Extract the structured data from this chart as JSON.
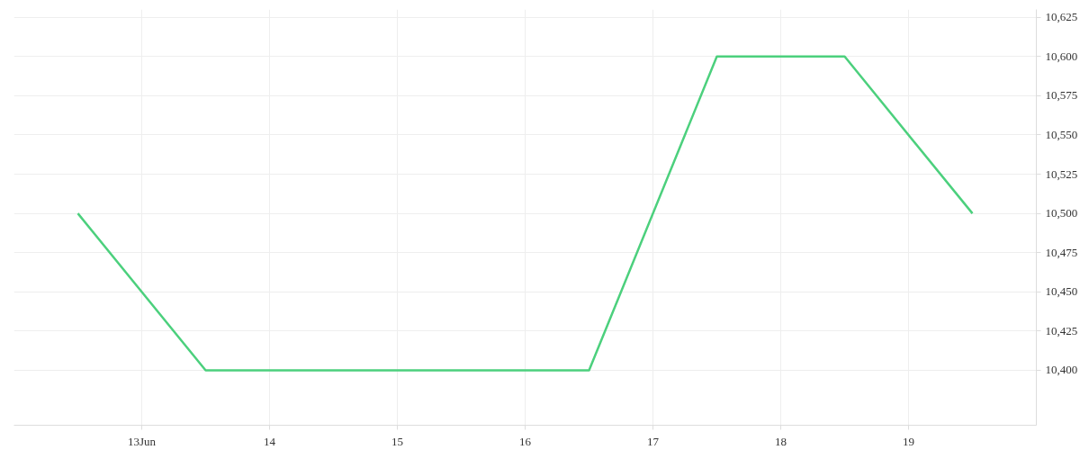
{
  "chart_data": {
    "type": "line",
    "x": [
      12.5,
      13.5,
      14.5,
      15.5,
      16.5,
      17.5,
      18.5,
      19.5
    ],
    "series": [
      {
        "color": "#4cd07d",
        "values": [
          10500,
          10400,
          10400,
          10400,
          10400,
          10600,
          10600,
          10500
        ]
      }
    ],
    "xlim": [
      12,
      20
    ],
    "xticks": [
      {
        "value": 13,
        "label": "13Jun"
      },
      14,
      15,
      16,
      17,
      18,
      19
    ],
    "ylim": [
      10365,
      10630
    ],
    "yticks": [
      {
        "value": 10400,
        "label": "10,400"
      },
      {
        "value": 10425,
        "label": "10,425"
      },
      {
        "value": 10450,
        "label": "10,450"
      },
      {
        "value": 10475,
        "label": "10,475"
      },
      {
        "value": 10500,
        "label": "10,500"
      },
      {
        "value": 10525,
        "label": "10,525"
      },
      {
        "value": 10550,
        "label": "10,550"
      },
      {
        "value": 10575,
        "label": "10,575"
      },
      {
        "value": 10600,
        "label": "10,600"
      },
      {
        "value": 10625,
        "label": "10,625"
      }
    ],
    "grid": true,
    "line_style": "solid"
  }
}
